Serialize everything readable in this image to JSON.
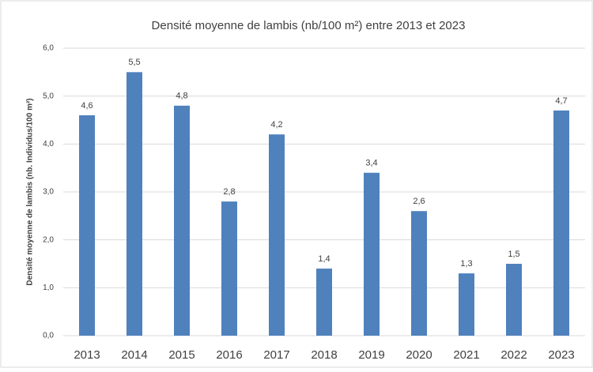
{
  "chart_data": {
    "type": "bar",
    "title": "Densité moyenne de lambis (nb/100 m²) entre 2013 et 2023",
    "y_label": "Densité moyenne de lambis (nb. Individus/100 m²)",
    "categories": [
      "2013",
      "2014",
      "2015",
      "2016",
      "2017",
      "2018",
      "2019",
      "2020",
      "2021",
      "2022",
      "2023"
    ],
    "values": [
      4.6,
      5.5,
      4.8,
      2.8,
      4.2,
      1.4,
      3.4,
      2.6,
      1.3,
      1.5,
      4.7
    ],
    "value_labels": [
      "4,6",
      "5,5",
      "4,8",
      "2,8",
      "4,2",
      "1,4",
      "3,4",
      "2,6",
      "1,3",
      "1,5",
      "4,7"
    ],
    "color": "#4f81bd",
    "ylim": [
      0,
      6
    ],
    "yticks": [
      {
        "value": 0,
        "label": "0,0"
      },
      {
        "value": 1,
        "label": "1,0"
      },
      {
        "value": 2,
        "label": "2,0"
      },
      {
        "value": 3,
        "label": "3,0"
      },
      {
        "value": 4,
        "label": "4,0"
      },
      {
        "value": 5,
        "label": "5,0"
      },
      {
        "value": 6,
        "label": "6,0"
      }
    ],
    "grid": true
  }
}
